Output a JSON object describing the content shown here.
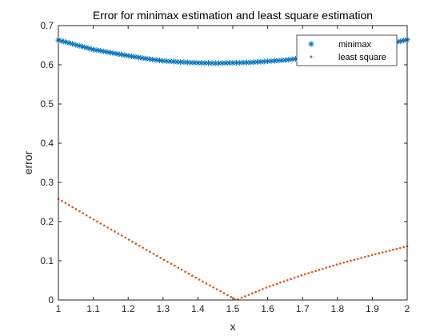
{
  "chart_data": {
    "type": "scatter",
    "title": "Error for minimax estimation and least square estimation",
    "xlabel": "x",
    "ylabel": "error",
    "xlim": [
      1,
      2
    ],
    "ylim": [
      0,
      0.7
    ],
    "xticks": [
      "1",
      "1.1",
      "1.2",
      "1.3",
      "1.4",
      "1.5",
      "1.6",
      "1.7",
      "1.8",
      "1.9",
      "2"
    ],
    "yticks": [
      "0",
      "0.1",
      "0.2",
      "0.3",
      "0.4",
      "0.5",
      "0.6",
      "0.7"
    ],
    "grid": false,
    "legend_position": "top-right",
    "series": [
      {
        "name": "minimax",
        "marker": "asterisk",
        "color": "#0072BD",
        "x": [
          1.0,
          1.05,
          1.1,
          1.15,
          1.2,
          1.25,
          1.3,
          1.35,
          1.4,
          1.45,
          1.5,
          1.55,
          1.6,
          1.65,
          1.7,
          1.75,
          1.8,
          1.85,
          1.9,
          1.95,
          2.0
        ],
        "y": [
          0.663,
          0.651,
          0.639,
          0.631,
          0.623,
          0.616,
          0.61,
          0.607,
          0.605,
          0.604,
          0.605,
          0.606,
          0.609,
          0.612,
          0.617,
          0.623,
          0.629,
          0.637,
          0.645,
          0.654,
          0.664
        ]
      },
      {
        "name": "least square",
        "marker": "dot",
        "color": "#D95319",
        "x": [
          1.0,
          1.1,
          1.2,
          1.3,
          1.4,
          1.5,
          1.51,
          1.6,
          1.7,
          1.8,
          1.9,
          2.0
        ],
        "y": [
          0.258,
          0.206,
          0.155,
          0.104,
          0.054,
          0.005,
          0.0,
          0.033,
          0.064,
          0.091,
          0.115,
          0.137
        ]
      }
    ]
  }
}
